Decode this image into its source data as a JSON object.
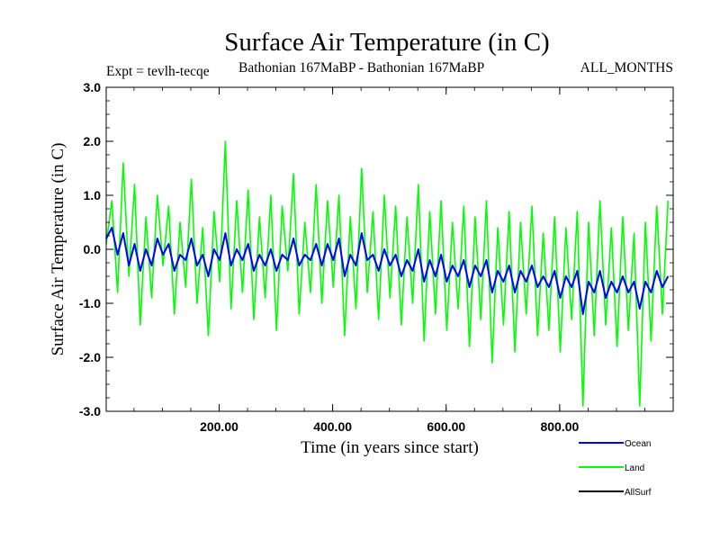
{
  "title": "Surface Air Temperature (in C)",
  "subtitle_left": "Expt = tevlh-tecqe",
  "subtitle_mid": "Bathonian 167MaBP - Bathonian 167MaBP",
  "subtitle_right": "ALL_MONTHS",
  "chart_data": {
    "type": "line",
    "title": "Surface Air Temperature (in C)",
    "xlabel": "Time (in years since start)",
    "ylabel": "Surface Air Temperature (in C)",
    "xlim": [
      1,
      1000
    ],
    "ylim": [
      -3.0,
      3.0
    ],
    "x_ticks": [
      200,
      400,
      600,
      800
    ],
    "x_tick_labels": [
      "200.00",
      "400.00",
      "600.00",
      "800.00"
    ],
    "y_ticks": [
      -3.0,
      -2.0,
      -1.0,
      0.0,
      1.0,
      2.0,
      3.0
    ],
    "y_tick_labels": [
      "-3.0",
      "-2.0",
      "-1.0",
      "0.0",
      "1.0",
      "2.0",
      "3.0"
    ],
    "legend_position": "bottom-right",
    "series": [
      {
        "name": "Land",
        "color": "#00ff00",
        "x_start": 1,
        "x_step": 10,
        "values": [
          0.1,
          0.9,
          -0.8,
          1.6,
          -0.5,
          1.2,
          -1.4,
          0.6,
          -0.9,
          1.0,
          -0.3,
          0.8,
          -1.2,
          0.5,
          -0.7,
          1.3,
          -1.0,
          0.4,
          -1.6,
          0.7,
          -0.6,
          2.0,
          -1.1,
          0.9,
          -0.8,
          1.1,
          -1.3,
          0.6,
          -0.9,
          1.0,
          -1.5,
          0.8,
          -0.4,
          1.4,
          -1.2,
          0.5,
          -0.8,
          1.2,
          -1.0,
          0.9,
          -0.7,
          1.0,
          -1.6,
          0.6,
          -1.1,
          1.5,
          -0.8,
          0.7,
          -1.3,
          1.0,
          -0.9,
          0.8,
          -1.4,
          0.6,
          -1.0,
          1.2,
          -1.7,
          0.7,
          -1.2,
          0.9,
          -1.5,
          0.5,
          -1.1,
          0.8,
          -1.8,
          0.6,
          -1.3,
          0.9,
          -2.1,
          0.4,
          -1.4,
          0.7,
          -1.9,
          0.5,
          -1.2,
          0.8,
          -1.6,
          0.3,
          -1.5,
          0.6,
          -1.9,
          0.4,
          -1.3,
          0.7,
          -2.9,
          0.5,
          -1.6,
          0.9,
          -1.4,
          0.4,
          -1.8,
          0.6,
          -1.5,
          0.3,
          -2.9,
          0.5,
          -1.7,
          0.8,
          -1.2,
          0.9
        ]
      },
      {
        "name": "Ocean",
        "color": "#0000ff",
        "x_start": 1,
        "x_step": 10,
        "values": [
          0.2,
          0.4,
          -0.1,
          0.3,
          -0.3,
          0.1,
          -0.4,
          0.0,
          -0.3,
          0.2,
          -0.1,
          0.1,
          -0.4,
          -0.1,
          -0.2,
          0.2,
          -0.3,
          -0.1,
          -0.5,
          0.0,
          -0.2,
          0.3,
          -0.3,
          0.0,
          -0.2,
          0.1,
          -0.4,
          -0.1,
          -0.3,
          0.0,
          -0.4,
          -0.1,
          -0.2,
          0.2,
          -0.3,
          -0.1,
          -0.2,
          0.1,
          -0.3,
          0.1,
          -0.2,
          0.2,
          -0.5,
          -0.1,
          -0.3,
          0.3,
          -0.2,
          -0.1,
          -0.4,
          0.0,
          -0.3,
          -0.1,
          -0.5,
          -0.2,
          -0.4,
          0.0,
          -0.6,
          -0.2,
          -0.5,
          -0.1,
          -0.6,
          -0.3,
          -0.5,
          -0.2,
          -0.7,
          -0.3,
          -0.5,
          -0.2,
          -0.8,
          -0.4,
          -0.6,
          -0.3,
          -0.8,
          -0.4,
          -0.6,
          -0.3,
          -0.7,
          -0.5,
          -0.7,
          -0.4,
          -0.9,
          -0.5,
          -0.7,
          -0.4,
          -1.2,
          -0.6,
          -0.8,
          -0.4,
          -0.9,
          -0.6,
          -0.8,
          -0.5,
          -0.8,
          -0.6,
          -1.1,
          -0.6,
          -0.8,
          -0.4,
          -0.7,
          -0.5
        ]
      },
      {
        "name": "AllSurf",
        "color": "#000000",
        "x_start": 1,
        "x_step": 10,
        "values": []
      }
    ]
  }
}
